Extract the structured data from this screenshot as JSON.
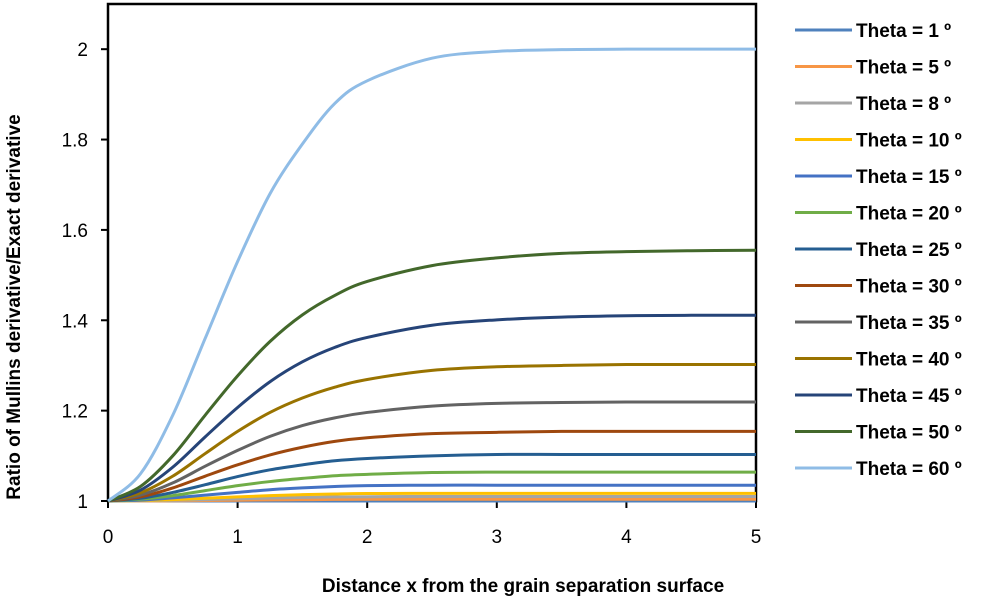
{
  "chart_data": {
    "type": "line",
    "title": "",
    "xlabel": "Distance  x from the grain separation  surface",
    "ylabel": "Ratio of Mullins derivative/Exact derivative",
    "xlim": [
      0,
      5
    ],
    "ylim": [
      1,
      2.1
    ],
    "xticks": [
      0,
      1,
      2,
      3,
      4,
      5
    ],
    "yticks": [
      1,
      1.2,
      1.4,
      1.6,
      1.8,
      2
    ],
    "grid": false,
    "legend_position": "right",
    "x": [
      0,
      0.25,
      0.5,
      0.75,
      1,
      1.25,
      1.5,
      1.75,
      2,
      2.5,
      3,
      3.5,
      4,
      4.5,
      5
    ],
    "series": [
      {
        "name": "Theta = 1 º",
        "color": "#4f81bd",
        "values": [
          1,
          1,
          1,
          1,
          1,
          1,
          1,
          1,
          1,
          1,
          1,
          1,
          1,
          1,
          1
        ]
      },
      {
        "name": "Theta = 5 º",
        "color": "#f79646",
        "values": [
          1,
          1,
          1.0005,
          1.001,
          1.0018,
          1.0025,
          1.003,
          1.0035,
          1.0038,
          1.004,
          1.004,
          1.004,
          1.004,
          1.004,
          1.004
        ]
      },
      {
        "name": "Theta = 8 º",
        "color": "#a5a5a5",
        "values": [
          1,
          1.0005,
          1.0015,
          1.003,
          1.0048,
          1.0065,
          1.008,
          1.009,
          1.0095,
          1.01,
          1.01,
          1.01,
          1.01,
          1.01,
          1.01
        ]
      },
      {
        "name": "Theta = 10 º",
        "color": "#ffc000",
        "values": [
          1,
          1.001,
          1.003,
          1.006,
          1.009,
          1.012,
          1.014,
          1.0155,
          1.0165,
          1.017,
          1.017,
          1.017,
          1.017,
          1.017,
          1.017
        ]
      },
      {
        "name": "Theta = 15 º",
        "color": "#4472c4",
        "values": [
          1,
          1.002,
          1.007,
          1.013,
          1.019,
          1.025,
          1.029,
          1.032,
          1.034,
          1.035,
          1.035,
          1.035,
          1.035,
          1.035,
          1.035
        ]
      },
      {
        "name": "Theta = 20 º",
        "color": "#70ad47",
        "values": [
          1,
          1.004,
          1.012,
          1.023,
          1.034,
          1.043,
          1.05,
          1.056,
          1.059,
          1.063,
          1.064,
          1.064,
          1.064,
          1.064,
          1.064
        ]
      },
      {
        "name": "Theta = 25 º",
        "color": "#255e91",
        "values": [
          1,
          1.006,
          1.019,
          1.036,
          1.054,
          1.069,
          1.08,
          1.089,
          1.094,
          1.1,
          1.103,
          1.103,
          1.103,
          1.103,
          1.103
        ]
      },
      {
        "name": "Theta = 30 º",
        "color": "#9e480e",
        "values": [
          1,
          1.009,
          1.029,
          1.055,
          1.08,
          1.102,
          1.119,
          1.132,
          1.14,
          1.149,
          1.152,
          1.154,
          1.154,
          1.154,
          1.154
        ]
      },
      {
        "name": "Theta = 35 º",
        "color": "#636363",
        "values": [
          1,
          1.013,
          1.04,
          1.077,
          1.112,
          1.143,
          1.167,
          1.184,
          1.196,
          1.21,
          1.216,
          1.218,
          1.219,
          1.219,
          1.219
        ]
      },
      {
        "name": "Theta = 40 º",
        "color": "#997300",
        "values": [
          1,
          1.018,
          1.055,
          1.105,
          1.154,
          1.196,
          1.228,
          1.252,
          1.269,
          1.289,
          1.297,
          1.3,
          1.302,
          1.302,
          1.302
        ]
      },
      {
        "name": "Theta = 45 º",
        "color": "#264478",
        "values": [
          1,
          1.024,
          1.075,
          1.142,
          1.207,
          1.264,
          1.308,
          1.34,
          1.362,
          1.389,
          1.401,
          1.407,
          1.41,
          1.411,
          1.411
        ]
      },
      {
        "name": "Theta = 50 º",
        "color": "#43682b",
        "values": [
          1,
          1.032,
          1.1,
          1.19,
          1.277,
          1.353,
          1.412,
          1.455,
          1.486,
          1.521,
          1.538,
          1.548,
          1.552,
          1.554,
          1.555
        ]
      },
      {
        "name": "Theta = 60 º",
        "color": "#8fbce6",
        "values": [
          1,
          1.06,
          1.19,
          1.36,
          1.53,
          1.68,
          1.79,
          1.88,
          1.93,
          1.98,
          1.995,
          1.999,
          2,
          2,
          2
        ]
      }
    ]
  }
}
